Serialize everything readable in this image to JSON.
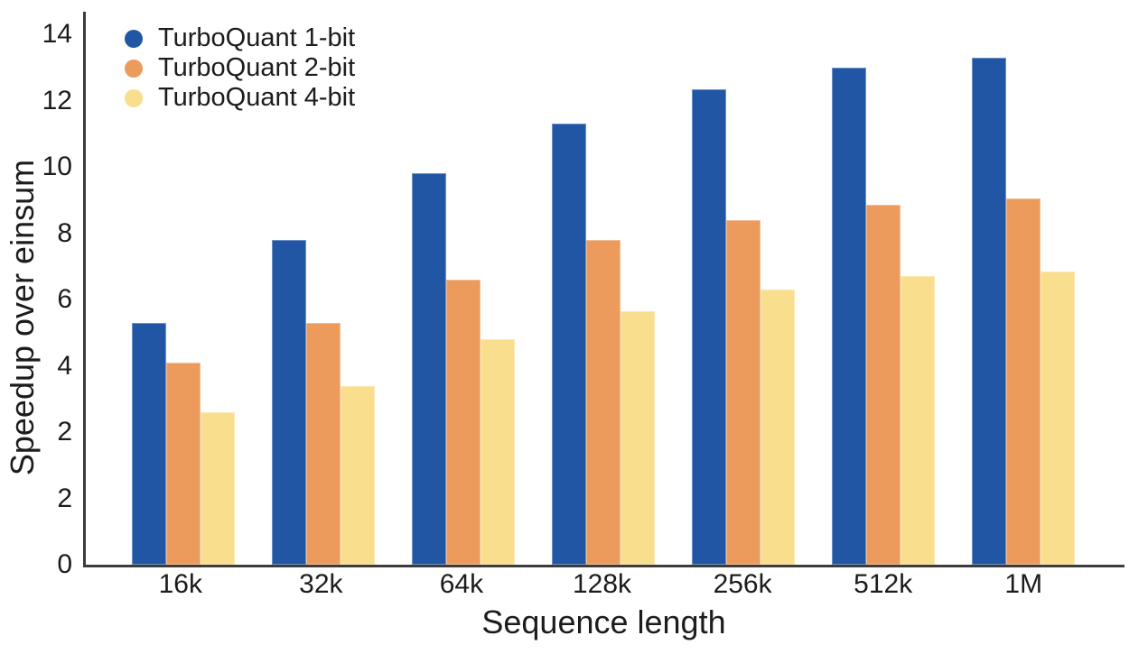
{
  "chart_data": {
    "type": "bar",
    "title": "",
    "xlabel": "Sequence length",
    "ylabel": "Speedup over einsum",
    "categories": [
      "16k",
      "32k",
      "64k",
      "128k",
      "256k",
      "512k",
      "1M"
    ],
    "series": [
      {
        "name": "TurboQuant 1-bit",
        "color": "#2156A4",
        "values": [
          5.3,
          7.8,
          9.8,
          11.3,
          12.35,
          13.0,
          13.3
        ]
      },
      {
        "name": "TurboQuant 2-bit",
        "color": "#EC9B5C",
        "values": [
          4.1,
          5.3,
          6.6,
          7.8,
          8.4,
          8.85,
          9.05
        ]
      },
      {
        "name": "TurboQuant 4-bit",
        "color": "#F9DE8D",
        "values": [
          2.6,
          3.4,
          4.8,
          5.65,
          6.3,
          6.7,
          6.85
        ]
      }
    ],
    "y_tick_labels_bottom_to_top": [
      "0",
      "2",
      "2",
      "4",
      "6",
      "8",
      "10",
      "12",
      "14"
    ],
    "y_axis_note": "9 evenly spaced ticks; the label 2 is printed twice in the source figure",
    "grid": false,
    "legend_position": "upper-left",
    "background_color": "#ffffff",
    "axis_color": "#3c3c3c",
    "text_color": "#1c1c1c"
  }
}
